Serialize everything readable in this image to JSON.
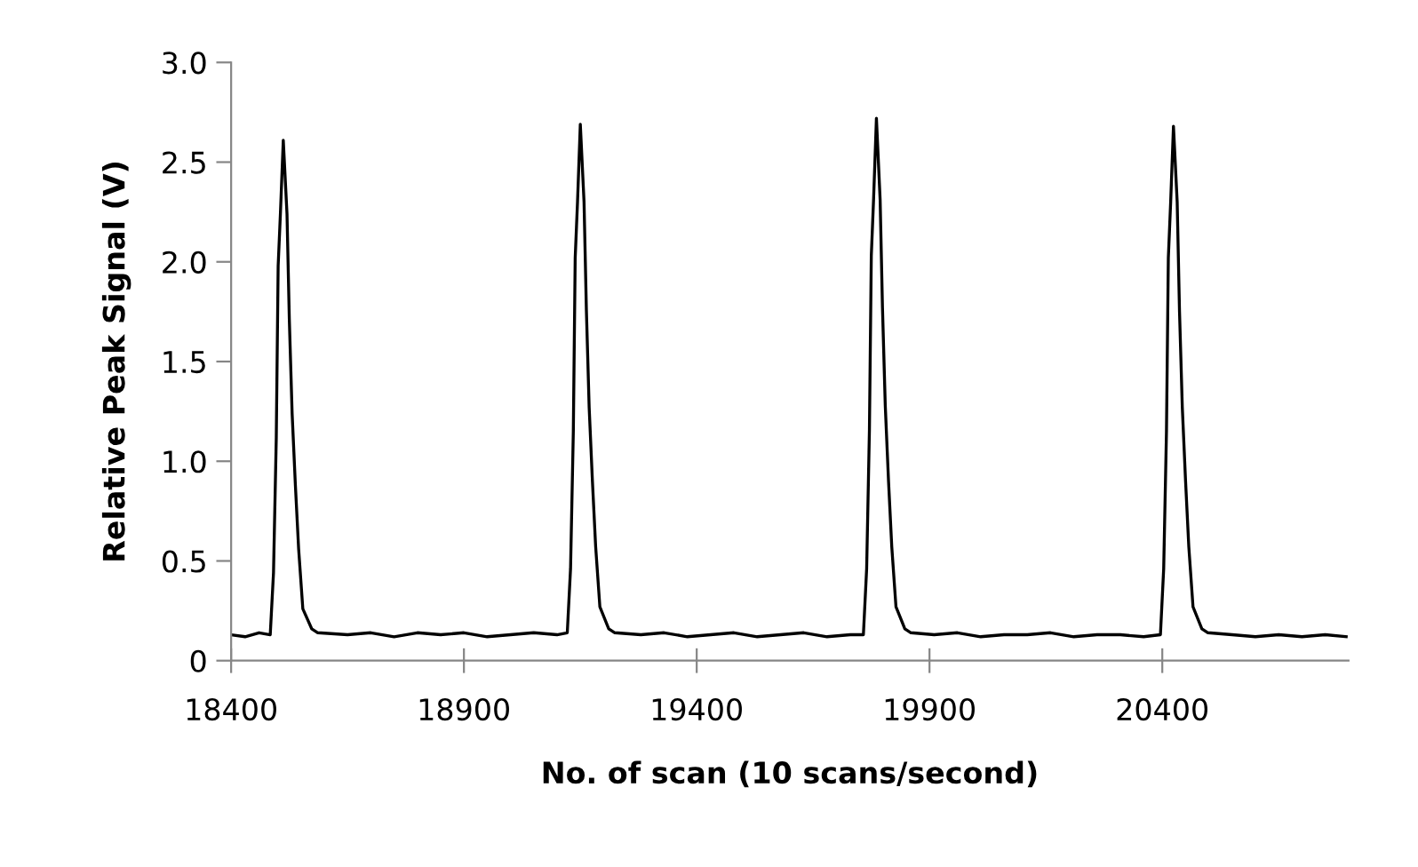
{
  "chart_data": {
    "type": "line",
    "xlabel": "No. of scan (10 scans/second)",
    "ylabel": "Relative Peak Signal (V)",
    "xlim": [
      18400,
      20800
    ],
    "xticks": [
      18400,
      18900,
      19400,
      19900,
      20400
    ],
    "ylim": [
      0,
      3.0
    ],
    "yticks": [
      {
        "value": 0,
        "label": "0"
      },
      {
        "value": 0.5,
        "label": "0.5"
      },
      {
        "value": 1.0,
        "label": "1.0"
      },
      {
        "value": 1.5,
        "label": "1.5"
      },
      {
        "value": 2.0,
        "label": "2.0"
      },
      {
        "value": 2.5,
        "label": "2.5"
      },
      {
        "value": 3.0,
        "label": "3.0"
      }
    ],
    "grid": false,
    "legend": false,
    "marker": "none",
    "line_style": "solid",
    "series": [
      {
        "color": "#000000",
        "x": [
          18400,
          18430,
          18460,
          18484,
          18491,
          18497,
          18501,
          18506,
          18512,
          18520,
          18525,
          18531,
          18538,
          18545,
          18554,
          18573,
          18586,
          18650,
          18700,
          18750,
          18800,
          18850,
          18900,
          18950,
          19000,
          19050,
          19100,
          19122,
          19129,
          19135,
          19139,
          19144,
          19150,
          19158,
          19163,
          19169,
          19176,
          19183,
          19192,
          19211,
          19224,
          19280,
          19330,
          19380,
          19430,
          19480,
          19530,
          19580,
          19630,
          19680,
          19730,
          19758,
          19765,
          19771,
          19775,
          19780,
          19786,
          19794,
          19799,
          19805,
          19812,
          19819,
          19828,
          19847,
          19860,
          19910,
          19960,
          20010,
          20060,
          20110,
          20160,
          20210,
          20260,
          20310,
          20360,
          20396,
          20403,
          20409,
          20413,
          20418,
          20424,
          20432,
          20437,
          20443,
          20450,
          20457,
          20466,
          20485,
          20498,
          20550,
          20600,
          20650,
          20700,
          20750,
          20795
        ],
        "values": [
          0.13,
          0.12,
          0.14,
          0.13,
          0.44,
          1.12,
          1.98,
          2.25,
          2.61,
          2.24,
          1.71,
          1.24,
          0.88,
          0.56,
          0.26,
          0.16,
          0.14,
          0.13,
          0.14,
          0.12,
          0.14,
          0.13,
          0.14,
          0.12,
          0.13,
          0.14,
          0.13,
          0.14,
          0.46,
          1.15,
          2.02,
          2.3,
          2.69,
          2.3,
          1.76,
          1.27,
          0.9,
          0.57,
          0.27,
          0.16,
          0.14,
          0.13,
          0.14,
          0.12,
          0.13,
          0.14,
          0.12,
          0.13,
          0.14,
          0.12,
          0.13,
          0.13,
          0.46,
          1.16,
          2.03,
          2.32,
          2.72,
          2.31,
          1.77,
          1.28,
          0.9,
          0.57,
          0.27,
          0.16,
          0.14,
          0.13,
          0.14,
          0.12,
          0.13,
          0.13,
          0.14,
          0.12,
          0.13,
          0.13,
          0.12,
          0.13,
          0.46,
          1.15,
          2.02,
          2.3,
          2.68,
          2.3,
          1.75,
          1.27,
          0.9,
          0.57,
          0.27,
          0.16,
          0.14,
          0.13,
          0.12,
          0.13,
          0.12,
          0.13,
          0.12
        ]
      }
    ]
  }
}
